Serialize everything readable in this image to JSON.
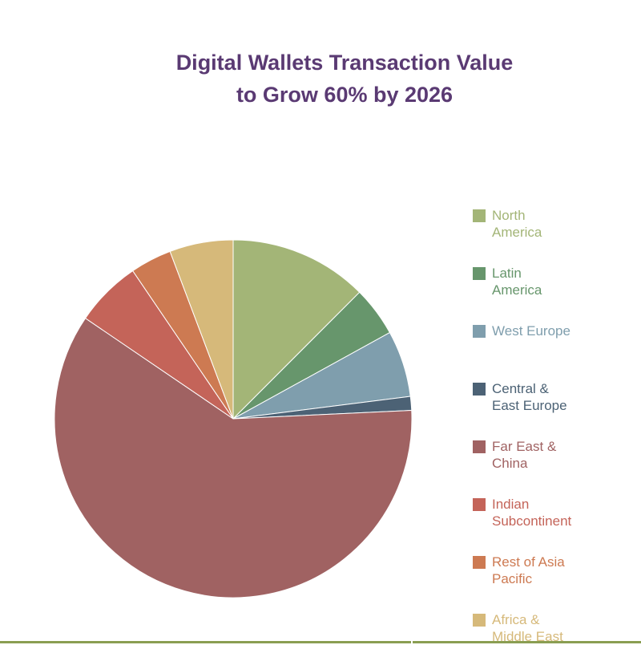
{
  "chart_data": {
    "type": "pie",
    "title_lines": [
      "Digital Wallets Transaction Value",
      "to Grow 60% by 2026"
    ],
    "slices": [
      {
        "label": "North\nAmerica",
        "value": 12.5,
        "color": "#a3b577"
      },
      {
        "label": "Latin\nAmerica",
        "value": 4.5,
        "color": "#67966c"
      },
      {
        "label": "West Europe",
        "value": 6.0,
        "color": "#7f9ead"
      },
      {
        "label": "Central &\nEast Europe",
        "value": 1.25,
        "color": "#4c6275"
      },
      {
        "label": "Far East &\nChina",
        "value": 60.25,
        "color": "#a06262"
      },
      {
        "label": "Indian\nSubcontinent",
        "value": 6.0,
        "color": "#c46459"
      },
      {
        "label": "Rest of Asia\nPacific",
        "value": 3.75,
        "color": "#cd7a52"
      },
      {
        "label": "Africa &\nMiddle East",
        "value": 5.75,
        "color": "#d6b97a"
      }
    ],
    "legend_position": "right",
    "start_angle": "12 o'clock",
    "direction": "clockwise"
  }
}
